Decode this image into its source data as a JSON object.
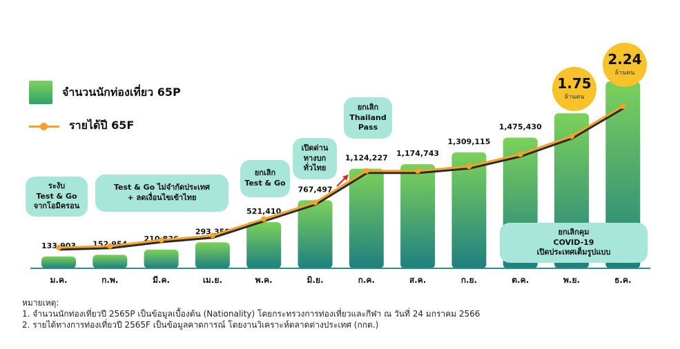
{
  "legend": {
    "bars_label": "จำนวนนักท่องเที่ยว 65P",
    "line_label": "รายได้ปี 65F"
  },
  "colors": {
    "bar_top": "#7cd15a",
    "bar_bottom": "#1f7f80",
    "line": "#f5a22a",
    "axis": "#2a8f86",
    "bubble": "#a7e6d9",
    "badge": "#f7c22a"
  },
  "annotations": {
    "jan": "ระงับ\nTest & Go\nจากโอมิครอน",
    "feb_apr": "Test & Go ไม่จำกัดประเทศ\n+  ลดเงื่อนไขเข้าไทย",
    "may": "ยกเลิก\nTest & Go",
    "jun": "เปิดด่าน\nทางบก\nทั่วไทย",
    "jul": "ยกเลิก\nThailand\nPass",
    "oct_dec": "ยกเลิกคุม\nCOVID-19\nเปิดประเทศเต็มรูปแบบ"
  },
  "badges": {
    "nov_value": "1.75",
    "nov_unit": "ล้านคน",
    "dec_value": "2.24",
    "dec_unit": "ล้านคน"
  },
  "notes": {
    "heading": "หมายเหตุ:",
    "note1": "1.  จำนวนนักท่องเที่ยวปี 2565P เป็นข้อมูลเบื้องต้น (Nationality) โดยกระทรวงการท่องเที่ยวและกีฬา ณ วันที่ 24 มกราคม 2566",
    "note2": "2. รายได้ทางการท่องเที่ยวปี 2565F เป็นข้อมูลคาดการณ์ โดยงานวิเคราะห์ตลาดต่างประเทศ (กกต.)"
  },
  "chart_data": {
    "type": "bar",
    "categories": [
      "ม.ค.",
      "ก.พ.",
      "มี.ค.",
      "เม.ย.",
      "พ.ค.",
      "มิ.ย.",
      "ก.ค.",
      "ส.ค.",
      "ก.ย.",
      "ต.ค.",
      "พ.ย.",
      "ธ.ค."
    ],
    "series": [
      {
        "name": "จำนวนนักท่องเที่ยว 65P",
        "type": "bar",
        "values": [
          133903,
          152954,
          210836,
          293350,
          521410,
          767497,
          1124227,
          1174743,
          1309115,
          1475430,
          1750000,
          2240000
        ],
        "labels": [
          "133,903",
          "152,954",
          "210,836",
          "293,350",
          "521,410",
          "767,497",
          "1,124,227",
          "1,174,743",
          "1,309,115",
          "1,475,430",
          "",
          ""
        ]
      },
      {
        "name": "รายได้ปี 65F",
        "type": "line",
        "values": [
          0.06,
          0.07,
          0.11,
          0.14,
          0.25,
          0.36,
          0.57,
          0.57,
          0.6,
          0.68,
          0.8,
          1.0
        ]
      }
    ],
    "ylim": [
      0,
      2300000
    ],
    "grid": false
  }
}
